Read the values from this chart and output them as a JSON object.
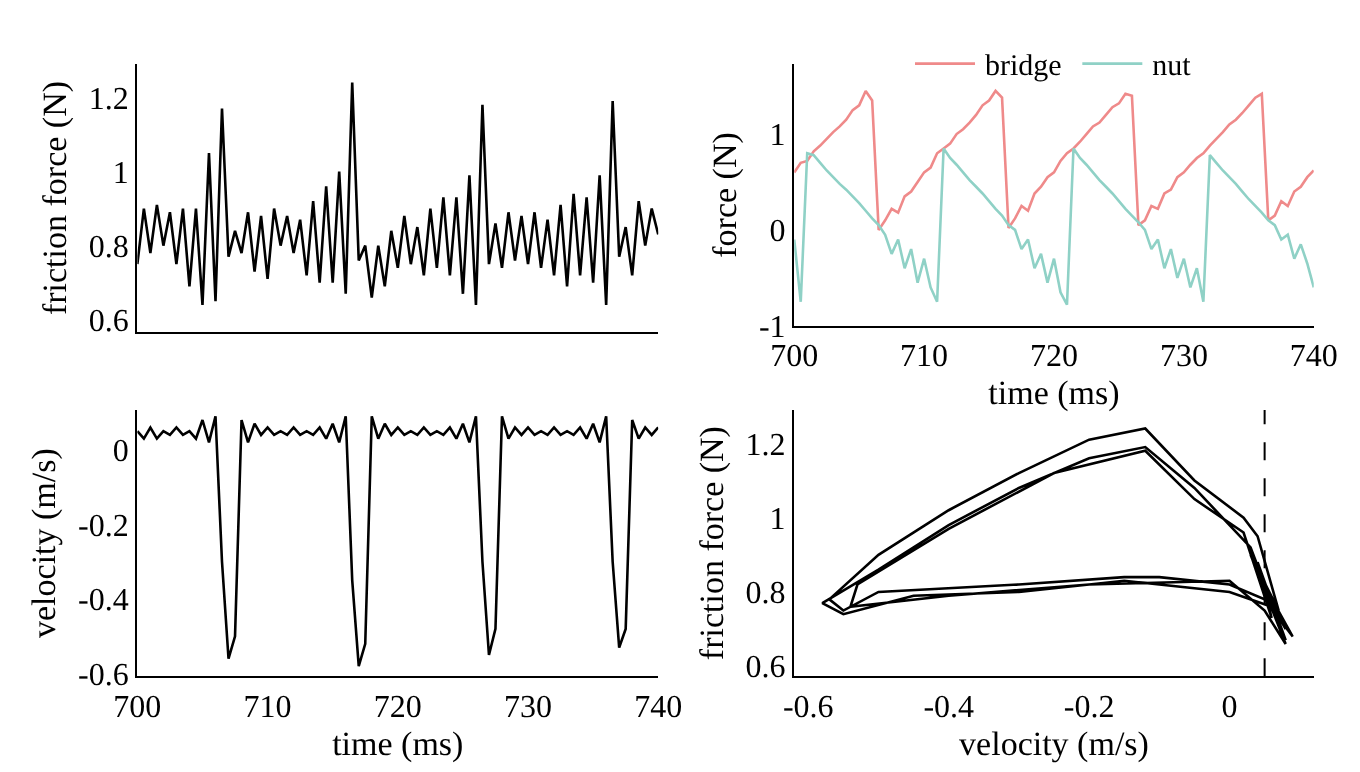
{
  "chart_data": [
    {
      "type": "line",
      "ylabel": "friction force (N)",
      "xlim": [
        700,
        740
      ],
      "ylim": [
        0.567,
        1.29
      ],
      "yticks": [
        0.6,
        0.8,
        1,
        1.2
      ],
      "tick_labels": "y",
      "x": [
        700,
        700.5,
        701,
        701.5,
        702,
        702.5,
        703,
        703.5,
        704,
        704.5,
        705,
        705.5,
        706,
        706.5,
        707,
        707.5,
        708,
        708.5,
        709,
        709.5,
        710,
        710.5,
        711,
        711.5,
        712,
        712.5,
        713,
        713.5,
        714,
        714.5,
        715,
        715.5,
        716,
        716.5,
        717,
        717.5,
        718,
        718.5,
        719,
        719.5,
        720,
        720.5,
        721,
        721.5,
        722,
        722.5,
        723,
        723.5,
        724,
        724.5,
        725,
        725.5,
        726,
        726.5,
        727,
        727.5,
        728,
        728.5,
        729,
        729.5,
        730,
        730.5,
        731,
        731.5,
        732,
        732.5,
        733,
        733.5,
        734,
        734.5,
        735,
        735.5,
        736,
        736.5,
        737,
        737.5,
        738,
        738.5,
        739,
        739.5,
        740
      ],
      "series": [
        {
          "color": "#000000",
          "values": [
            0.75,
            0.9,
            0.78,
            0.91,
            0.8,
            0.89,
            0.75,
            0.9,
            0.69,
            0.9,
            0.64,
            1.05,
            0.65,
            1.17,
            0.77,
            0.84,
            0.78,
            0.89,
            0.73,
            0.88,
            0.71,
            0.9,
            0.8,
            0.88,
            0.78,
            0.87,
            0.72,
            0.92,
            0.7,
            0.96,
            0.7,
            1.0,
            0.67,
            1.24,
            0.76,
            0.8,
            0.66,
            0.8,
            0.69,
            0.84,
            0.74,
            0.88,
            0.75,
            0.85,
            0.72,
            0.9,
            0.74,
            0.93,
            0.72,
            0.93,
            0.67,
            0.99,
            0.64,
            1.18,
            0.75,
            0.86,
            0.74,
            0.89,
            0.76,
            0.88,
            0.75,
            0.89,
            0.74,
            0.87,
            0.72,
            0.91,
            0.69,
            0.94,
            0.72,
            0.93,
            0.7,
            0.99,
            0.64,
            1.19,
            0.77,
            0.85,
            0.72,
            0.92,
            0.8,
            0.9,
            0.83
          ]
        }
      ]
    },
    {
      "type": "line",
      "xlabel": "time (ms)",
      "ylabel": "force (N)",
      "xlim": [
        700,
        740
      ],
      "xticks": [
        700,
        710,
        720,
        730,
        740
      ],
      "ylim": [
        -1,
        1.73
      ],
      "yticks": [
        -1,
        0,
        1
      ],
      "legend": "top",
      "x": [
        700,
        700.5,
        701,
        701.5,
        702,
        702.5,
        703,
        703.5,
        704,
        704.5,
        705,
        705.5,
        706,
        706.5,
        707,
        707.5,
        708,
        708.5,
        709,
        709.5,
        710,
        710.5,
        711,
        711.5,
        712,
        712.5,
        713,
        713.5,
        714,
        714.5,
        715,
        715.5,
        716,
        716.5,
        717,
        717.5,
        718,
        718.5,
        719,
        719.5,
        720,
        720.5,
        721,
        721.5,
        722,
        722.5,
        723,
        723.5,
        724,
        724.5,
        725,
        725.5,
        726,
        726.5,
        727,
        727.5,
        728,
        728.5,
        729,
        729.5,
        730,
        730.5,
        731,
        731.5,
        732,
        732.5,
        733,
        733.5,
        734,
        734.5,
        735,
        735.5,
        736,
        736.5,
        737,
        737.5,
        738,
        738.5,
        739,
        739.5,
        740
      ],
      "series": [
        {
          "name": "bridge",
          "color": "#ef8a8a",
          "values": [
            0.6,
            0.7,
            0.72,
            0.82,
            0.88,
            0.95,
            1.02,
            1.08,
            1.15,
            1.25,
            1.3,
            1.45,
            1.35,
            0.0,
            0.1,
            0.22,
            0.18,
            0.35,
            0.4,
            0.5,
            0.6,
            0.65,
            0.8,
            0.85,
            0.9,
            1.0,
            1.05,
            1.12,
            1.2,
            1.3,
            1.35,
            1.45,
            1.38,
            0.02,
            0.12,
            0.25,
            0.2,
            0.38,
            0.45,
            0.55,
            0.6,
            0.72,
            0.8,
            0.85,
            0.92,
            1.0,
            1.08,
            1.12,
            1.2,
            1.28,
            1.32,
            1.42,
            1.4,
            0.05,
            0.1,
            0.25,
            0.22,
            0.38,
            0.42,
            0.55,
            0.6,
            0.68,
            0.75,
            0.8,
            0.88,
            0.95,
            1.02,
            1.1,
            1.15,
            1.22,
            1.3,
            1.38,
            1.42,
            0.1,
            0.15,
            0.3,
            0.25,
            0.4,
            0.45,
            0.55,
            0.62
          ]
        },
        {
          "name": "nut",
          "color": "#8fd1c6",
          "values": [
            -0.1,
            -0.75,
            0.8,
            0.78,
            0.7,
            0.62,
            0.55,
            0.48,
            0.42,
            0.35,
            0.28,
            0.2,
            0.12,
            0.05,
            -0.05,
            -0.25,
            -0.1,
            -0.4,
            -0.2,
            -0.55,
            -0.3,
            -0.6,
            -0.75,
            0.85,
            0.75,
            0.68,
            0.6,
            0.52,
            0.45,
            0.38,
            0.3,
            0.22,
            0.15,
            0.05,
            0.0,
            -0.2,
            -0.1,
            -0.4,
            -0.25,
            -0.55,
            -0.3,
            -0.65,
            -0.78,
            0.85,
            0.75,
            0.68,
            0.6,
            0.52,
            0.45,
            0.38,
            0.3,
            0.22,
            0.15,
            0.08,
            0.0,
            -0.2,
            -0.1,
            -0.4,
            -0.2,
            -0.5,
            -0.3,
            -0.6,
            -0.4,
            -0.75,
            0.78,
            0.7,
            0.62,
            0.55,
            0.48,
            0.4,
            0.32,
            0.25,
            0.18,
            0.1,
            0.05,
            -0.1,
            -0.05,
            -0.3,
            -0.15,
            -0.35,
            -0.6
          ]
        }
      ]
    },
    {
      "type": "line",
      "xlabel": "time (ms)",
      "ylabel": "velocity (m/s)",
      "xlim": [
        700,
        740
      ],
      "xticks": [
        700,
        710,
        720,
        730,
        740
      ],
      "ylim": [
        -0.607,
        0.107
      ],
      "yticks": [
        -0.6,
        -0.4,
        -0.2,
        0
      ],
      "x": [
        700,
        700.5,
        701,
        701.5,
        702,
        702.5,
        703,
        703.5,
        704,
        704.5,
        705,
        705.5,
        706,
        706.5,
        707,
        707.5,
        708,
        708.5,
        709,
        709.5,
        710,
        710.5,
        711,
        711.5,
        712,
        712.5,
        713,
        713.5,
        714,
        714.5,
        715,
        715.5,
        716,
        716.5,
        717,
        717.5,
        718,
        718.5,
        719,
        719.5,
        720,
        720.5,
        721,
        721.5,
        722,
        722.5,
        723,
        723.5,
        724,
        724.5,
        725,
        725.5,
        726,
        726.5,
        727,
        727.5,
        728,
        728.5,
        729,
        729.5,
        730,
        730.5,
        731,
        731.5,
        732,
        732.5,
        733,
        733.5,
        734,
        734.5,
        735,
        735.5,
        736,
        736.5,
        737,
        737.5,
        738,
        738.5,
        739,
        739.5,
        740
      ],
      "series": [
        {
          "color": "#000000",
          "values": [
            0.05,
            0.03,
            0.06,
            0.03,
            0.05,
            0.04,
            0.06,
            0.04,
            0.05,
            0.03,
            0.08,
            0.02,
            0.09,
            -0.3,
            -0.56,
            -0.5,
            0.08,
            0.02,
            0.07,
            0.04,
            0.06,
            0.04,
            0.05,
            0.04,
            0.06,
            0.04,
            0.05,
            0.04,
            0.06,
            0.03,
            0.07,
            0.02,
            0.09,
            -0.35,
            -0.58,
            -0.52,
            0.09,
            0.03,
            0.07,
            0.04,
            0.06,
            0.04,
            0.05,
            0.04,
            0.06,
            0.04,
            0.05,
            0.04,
            0.06,
            0.03,
            0.07,
            0.02,
            0.09,
            -0.3,
            -0.55,
            -0.48,
            0.09,
            0.03,
            0.06,
            0.04,
            0.06,
            0.04,
            0.05,
            0.04,
            0.06,
            0.04,
            0.05,
            0.04,
            0.06,
            0.03,
            0.07,
            0.02,
            0.09,
            -0.3,
            -0.53,
            -0.48,
            0.08,
            0.03,
            0.06,
            0.04,
            0.06
          ]
        }
      ]
    },
    {
      "type": "line",
      "xlabel": "velocity (m/s)",
      "ylabel": "friction force (N)",
      "xlim": [
        -0.62,
        0.12
      ],
      "xticks": [
        -0.6,
        -0.4,
        -0.2,
        0
      ],
      "ylim": [
        0.573,
        1.29
      ],
      "yticks": [
        0.6,
        0.8,
        1,
        1.2
      ],
      "ref_lines": [
        {
          "axis": "x",
          "value": 0.05,
          "line_style": "dashed",
          "color": "#000000"
        }
      ],
      "series": [
        {
          "color": "#000000",
          "x": [
            0.05,
            0.08,
            0.03,
            0.07,
            0.04,
            0.02,
            -0.05,
            -0.12,
            -0.2,
            -0.3,
            -0.4,
            -0.5,
            -0.57,
            -0.55,
            -0.5,
            -0.3,
            -0.15,
            -0.1,
            0.0,
            0.05,
            0.09,
            0.04,
            0.07,
            0.03,
            0.0,
            -0.05,
            -0.12,
            -0.2,
            -0.3,
            -0.4,
            -0.5,
            -0.58,
            -0.55,
            -0.45,
            -0.3,
            -0.15,
            0.0,
            0.06,
            0.08,
            0.04,
            0.06,
            0.02,
            -0.05,
            -0.12,
            -0.25,
            -0.4,
            -0.53,
            -0.54,
            -0.4,
            -0.2,
            0.0,
            0.05,
            0.08,
            0.03
          ],
          "values": [
            0.8,
            0.7,
            0.9,
            0.75,
            0.95,
            1.0,
            1.1,
            1.24,
            1.21,
            1.12,
            1.02,
            0.9,
            0.78,
            0.75,
            0.8,
            0.82,
            0.84,
            0.84,
            0.82,
            0.78,
            0.68,
            0.85,
            0.72,
            0.92,
            0.98,
            1.08,
            1.19,
            1.16,
            1.08,
            0.98,
            0.86,
            0.77,
            0.74,
            0.79,
            0.8,
            0.83,
            0.8,
            0.76,
            0.67,
            0.88,
            0.73,
            0.96,
            1.05,
            1.18,
            1.12,
            0.97,
            0.82,
            0.76,
            0.79,
            0.82,
            0.83,
            0.75,
            0.66,
            0.9
          ]
        }
      ]
    }
  ]
}
